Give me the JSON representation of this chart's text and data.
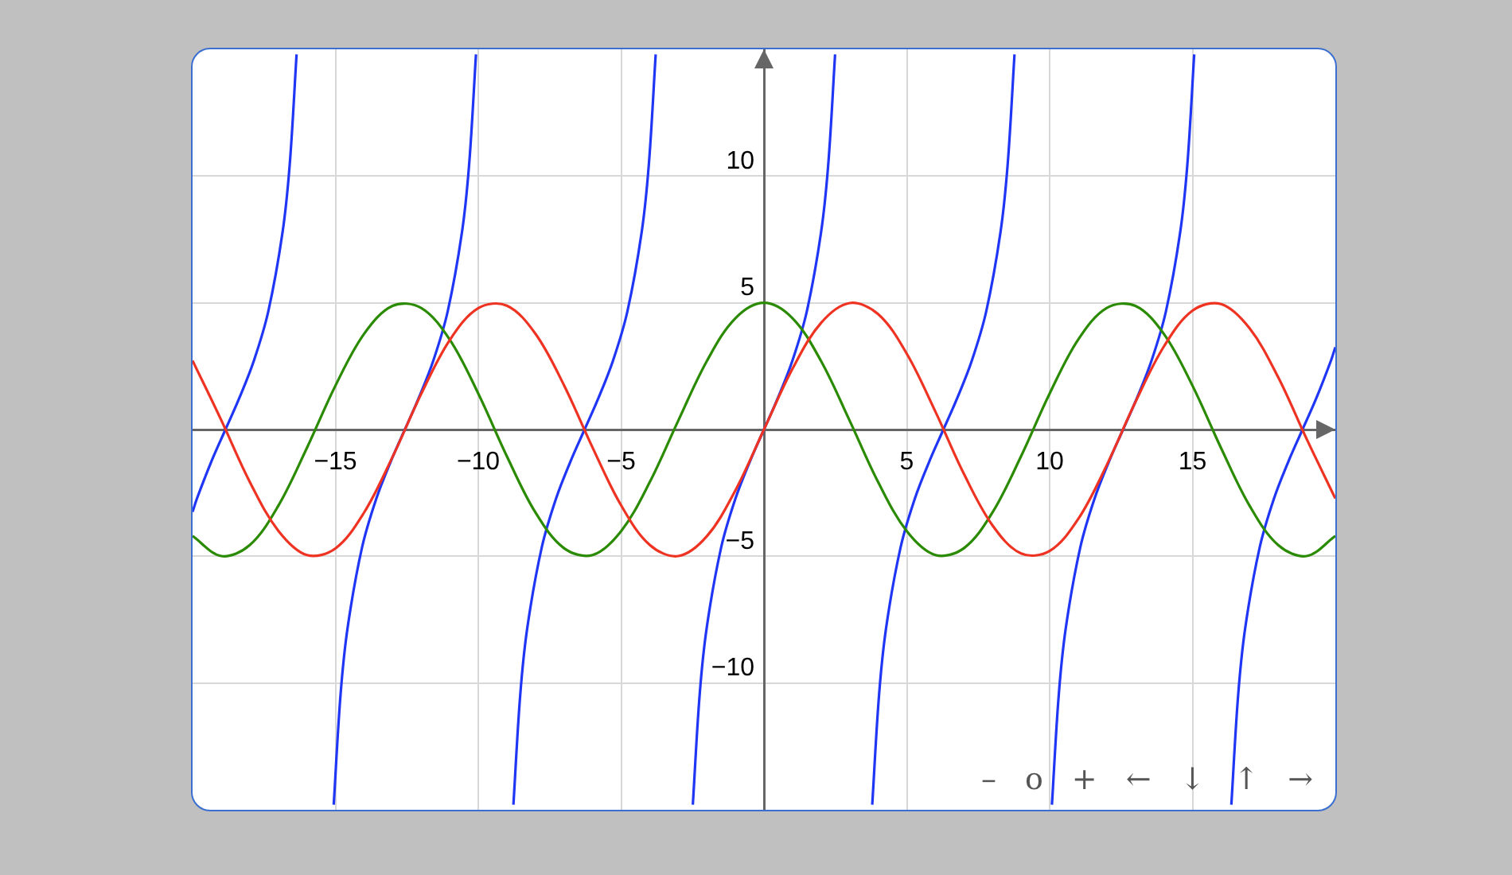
{
  "chart_data": {
    "type": "line",
    "xlim": [
      -20,
      20
    ],
    "ylim": [
      -15,
      15
    ],
    "xticks": [
      -15,
      -10,
      -5,
      {
        "value": 0,
        "label": null
      },
      5,
      10,
      15
    ],
    "yticks": [
      -10,
      -5,
      {
        "value": 0,
        "label": null
      },
      5,
      10
    ],
    "grid": true,
    "legend": false,
    "marker": "none",
    "line_style": "solid",
    "annotations": [
      "–",
      "o",
      "+",
      "←",
      "↓",
      "↑",
      "→"
    ],
    "series": [
      {
        "color": "#ee3322",
        "x": [
          -20,
          -19,
          -18,
          -17,
          -16,
          -15,
          -14,
          -13,
          -12,
          -11,
          -10,
          -9,
          -8,
          -7,
          -6,
          -5,
          -4,
          -3,
          -2,
          -1,
          0,
          1,
          2,
          3,
          4,
          5,
          6,
          7,
          8,
          9,
          10,
          11,
          12,
          13,
          14,
          15,
          16,
          17,
          18,
          19,
          20
        ],
        "values": [
          2.72,
          0.38,
          -2.06,
          -3.99,
          -4.95,
          -4.69,
          -3.28,
          -1.08,
          1.4,
          3.53,
          4.79,
          4.89,
          3.78,
          1.75,
          -0.71,
          -2.99,
          -4.55,
          -4.99,
          -4.21,
          -2.4,
          0,
          2.4,
          4.21,
          4.99,
          4.55,
          2.99,
          0.71,
          -1.75,
          -3.78,
          -4.89,
          -4.79,
          -3.53,
          -1.4,
          1.08,
          3.28,
          4.69,
          4.95,
          3.99,
          2.06,
          -0.38,
          -2.72
        ]
      },
      {
        "color": "#2a8a00",
        "x": [
          -20,
          -19,
          -18,
          -17,
          -16,
          -15,
          -14,
          -13,
          -12,
          -11,
          -10,
          -9,
          -8,
          -7,
          -6,
          -5,
          -4,
          -3,
          -2,
          -1,
          0,
          1,
          2,
          3,
          4,
          5,
          6,
          7,
          8,
          9,
          10,
          11,
          12,
          13,
          14,
          15,
          16,
          17,
          18,
          19,
          20
        ],
        "values": [
          -4.2,
          -4.99,
          -4.56,
          -3.01,
          -0.73,
          1.73,
          3.77,
          4.88,
          4.8,
          3.55,
          1.42,
          -1.05,
          -3.27,
          -4.68,
          -4.95,
          -4.01,
          -2.08,
          0.35,
          2.7,
          4.39,
          5,
          4.39,
          2.7,
          0.35,
          -2.08,
          -4.01,
          -4.95,
          -4.68,
          -3.27,
          -1.05,
          1.42,
          3.55,
          4.8,
          4.88,
          3.77,
          1.73,
          -0.73,
          -3.01,
          -4.56,
          -4.99,
          -4.2
        ]
      },
      {
        "color": "#2036f5",
        "x": [
          -20,
          -19.85,
          -19.35,
          -18.85,
          -18.35,
          -17.85,
          -17.35,
          -16.85,
          -16.6,
          -16.36,
          -15.71,
          -15.06,
          -14.82,
          -14.57,
          -14.07,
          -13.57,
          -13.07,
          -12.57,
          -12.07,
          -11.57,
          -11.07,
          -10.57,
          -10.32,
          -10.08,
          -9.42,
          -8.77,
          -8.53,
          -8.28,
          -7.78,
          -7.28,
          -6.78,
          -6.28,
          -5.78,
          -5.28,
          -4.78,
          -4.28,
          -4.03,
          -3.79,
          -3.14,
          -2.49,
          -2.25,
          -2,
          -1.5,
          -1,
          -0.5,
          0,
          0.5,
          1,
          1.5,
          2,
          2.25,
          2.49,
          3.14,
          3.79,
          4.03,
          4.28,
          4.78,
          5.28,
          5.78,
          6.28,
          6.78,
          7.28,
          7.78,
          8.28,
          8.53,
          8.77,
          9.42,
          10.08,
          10.32,
          10.57,
          11.07,
          11.57,
          12.07,
          12.57,
          13.07,
          13.57,
          14.07,
          14.57,
          14.82,
          15.06,
          15.71,
          16.36,
          16.6,
          16.85,
          17.35,
          17.85,
          18.35,
          18.85,
          19.35,
          19.85,
          20
        ],
        "values": [
          -3.25,
          -2.73,
          -1.28,
          0,
          1.28,
          2.73,
          4.66,
          7.79,
          10.45,
          14.8,
          null,
          -14.8,
          -10.45,
          -7.79,
          -4.66,
          -2.73,
          -1.28,
          0,
          1.28,
          2.73,
          4.66,
          7.79,
          10.45,
          14.8,
          null,
          -14.8,
          -10.45,
          -7.79,
          -4.66,
          -2.73,
          -1.28,
          0,
          1.28,
          2.73,
          4.66,
          7.79,
          10.45,
          14.8,
          null,
          -14.8,
          -10.45,
          -7.79,
          -4.66,
          -2.73,
          -1.28,
          0,
          1.28,
          2.73,
          4.66,
          7.79,
          10.45,
          14.8,
          null,
          -14.8,
          -10.45,
          -7.79,
          -4.66,
          -2.73,
          -1.28,
          0,
          1.28,
          2.73,
          4.66,
          7.79,
          10.45,
          14.8,
          null,
          -14.8,
          -10.45,
          -7.79,
          -4.66,
          -2.73,
          -1.28,
          0,
          1.28,
          2.73,
          4.66,
          7.79,
          10.45,
          14.8,
          null,
          -14.8,
          -10.45,
          -7.79,
          -4.66,
          -2.73,
          -1.28,
          0,
          1.28,
          2.73,
          3.25
        ]
      }
    ]
  }
}
